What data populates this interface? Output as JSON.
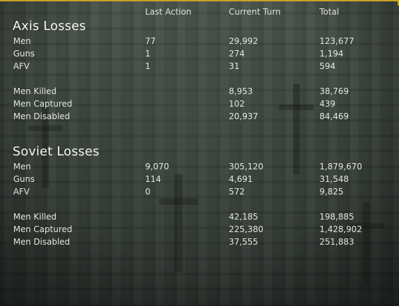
{
  "headers": {
    "last_action": "Last Action",
    "current_turn": "Current Turn",
    "total": "Total"
  },
  "axis": {
    "title": "Axis Losses",
    "rows": [
      {
        "label": "Men",
        "last": "77",
        "current": "29,992",
        "total": "123,677"
      },
      {
        "label": "Guns",
        "last": "1",
        "current": "274",
        "total": "1,194"
      },
      {
        "label": "AFV",
        "last": "1",
        "current": "31",
        "total": "594"
      },
      {
        "label": "Men Killed",
        "last": "",
        "current": "8,953",
        "total": "38,769"
      },
      {
        "label": "Men Captured",
        "last": "",
        "current": "102",
        "total": "439"
      },
      {
        "label": "Men Disabled",
        "last": "",
        "current": "20,937",
        "total": "84,469"
      }
    ]
  },
  "soviet": {
    "title": "Soviet Losses",
    "rows": [
      {
        "label": "Men",
        "last": "9,070",
        "current": "305,120",
        "total": "1,879,670"
      },
      {
        "label": "Guns",
        "last": "114",
        "current": "4,691",
        "total": "31,548"
      },
      {
        "label": "AFV",
        "last": "0",
        "current": "572",
        "total": "9,825"
      },
      {
        "label": "Men Killed",
        "last": "",
        "current": "42,185",
        "total": "198,885"
      },
      {
        "label": "Men Captured",
        "last": "",
        "current": "225,380",
        "total": "1,428,902"
      },
      {
        "label": "Men Disabled",
        "last": "",
        "current": "37,555",
        "total": "251,883"
      }
    ]
  },
  "colors": {
    "accent": "#c9a227",
    "background": "#3d453f",
    "text": "#e4e7e2"
  }
}
